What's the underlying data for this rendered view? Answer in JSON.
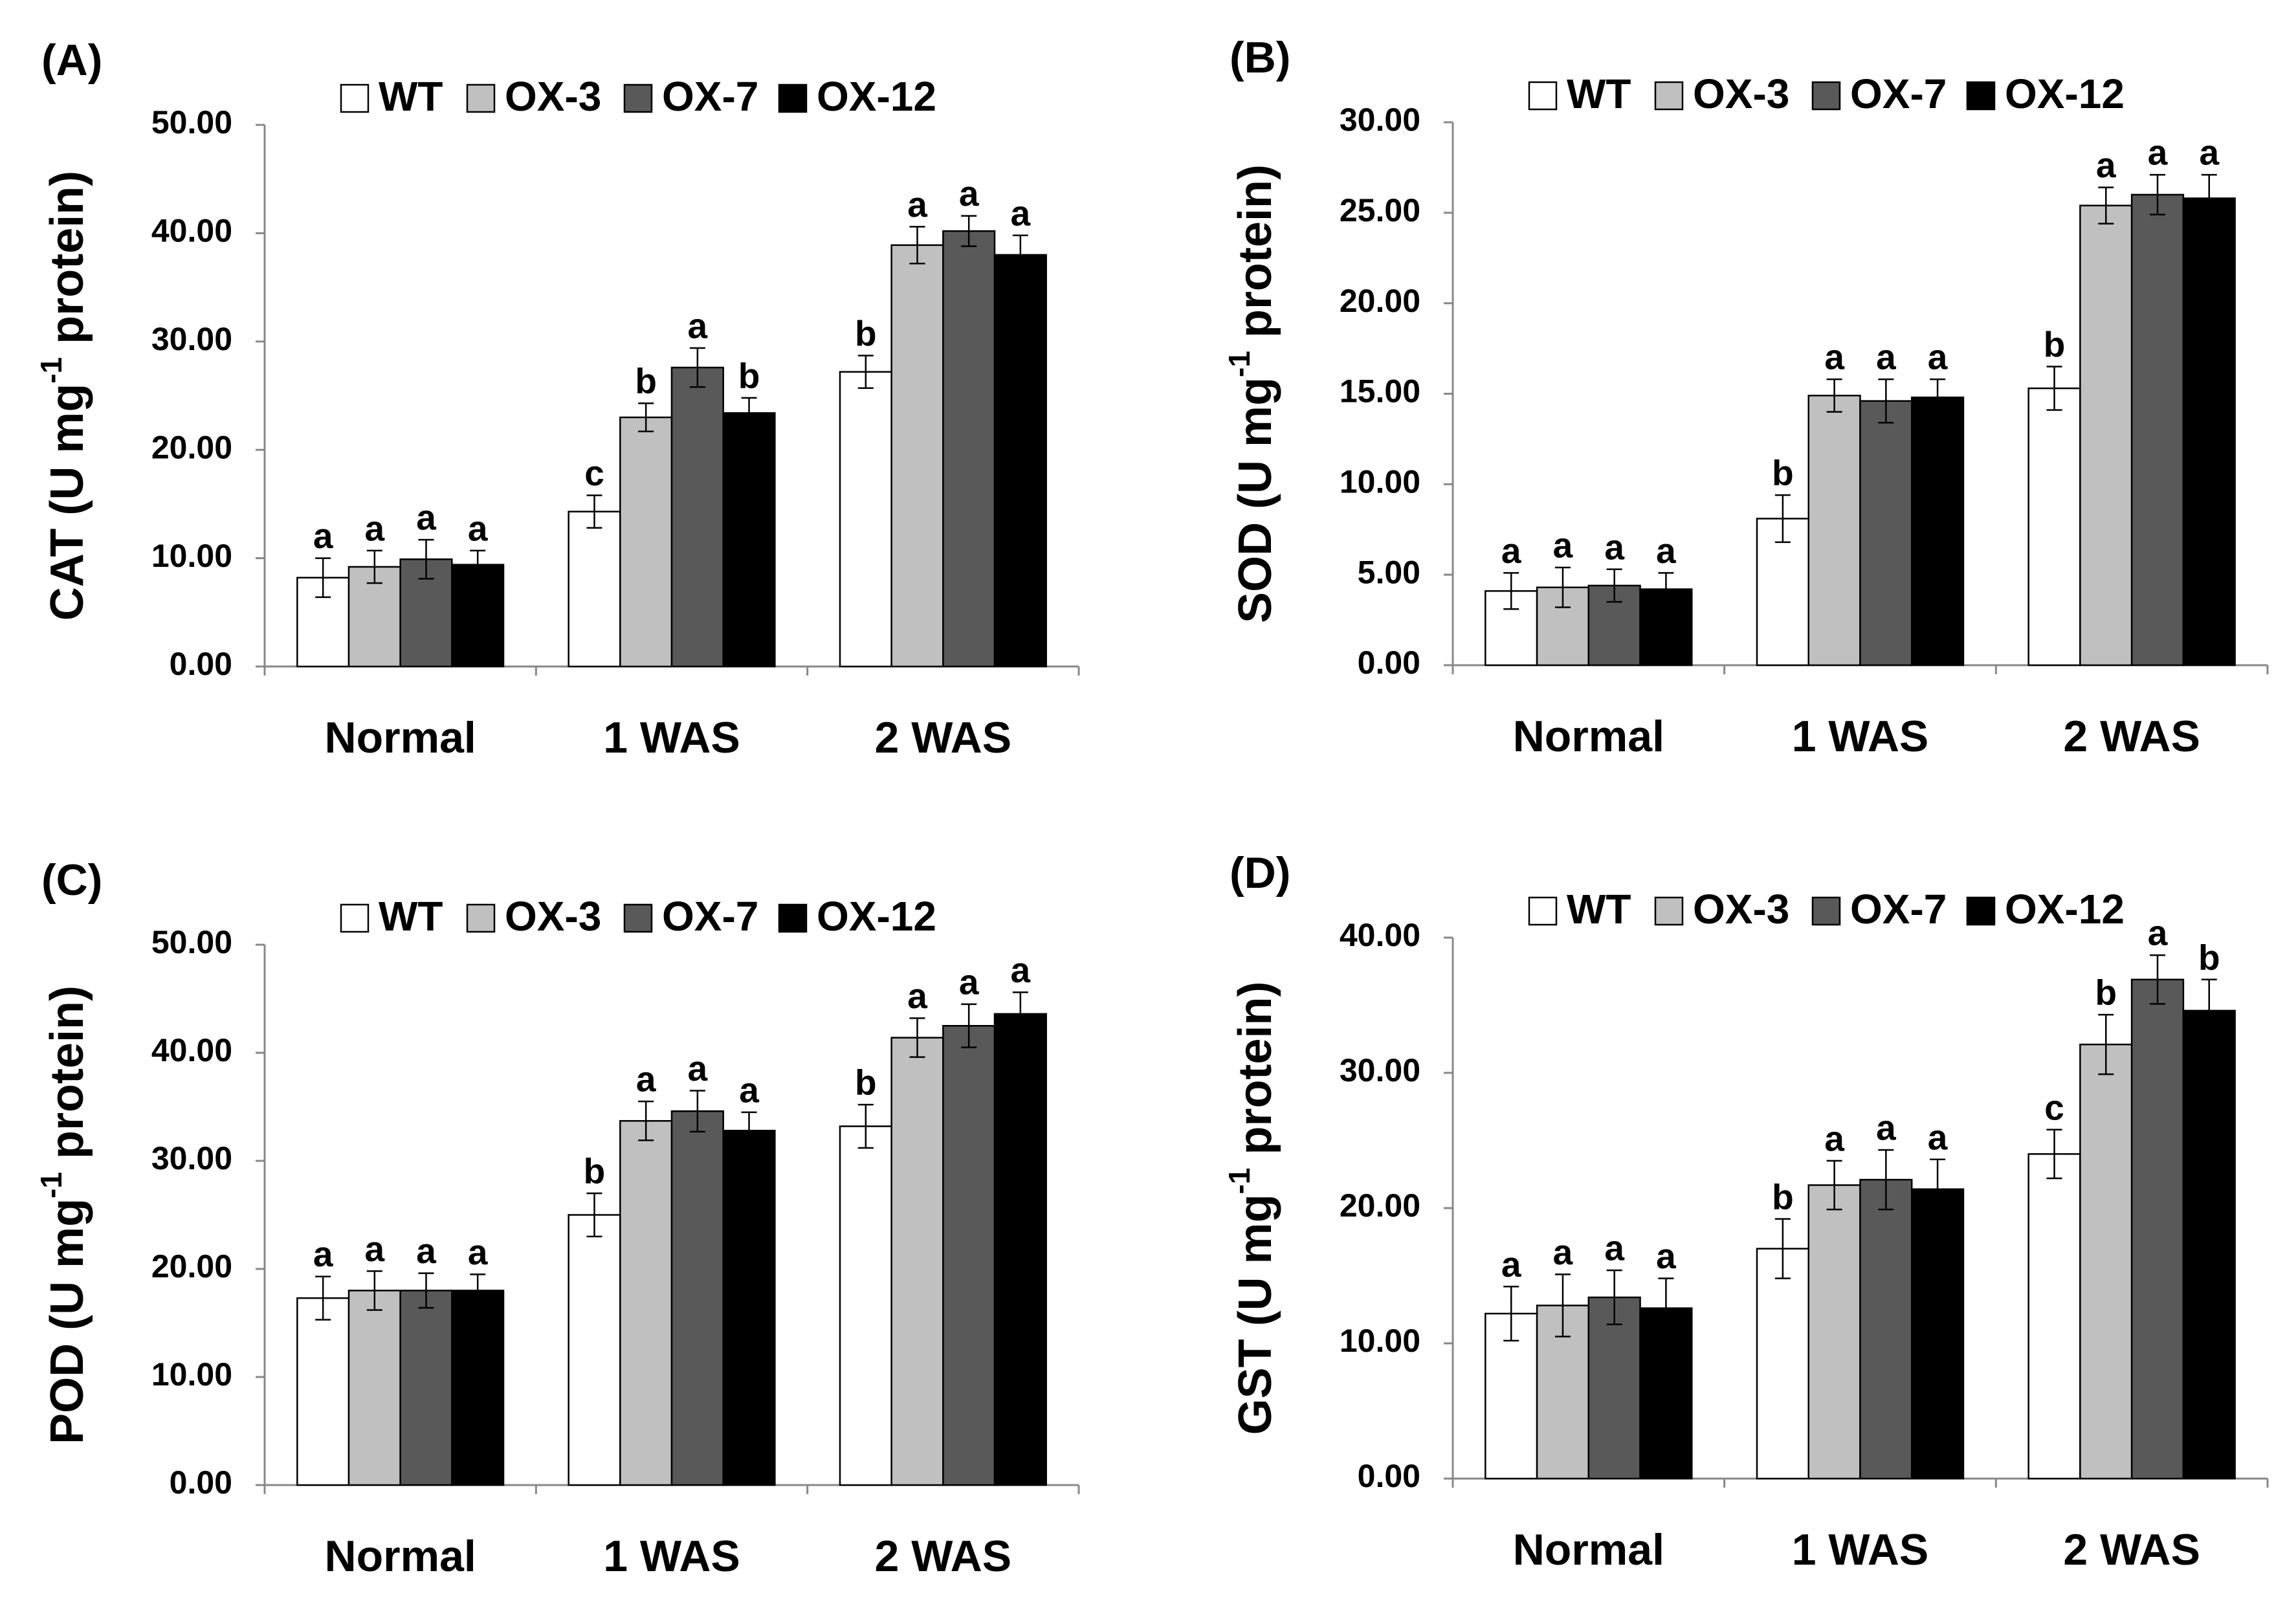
{
  "chart_data": [
    {
      "type": "bar",
      "panel": "(A)",
      "ylabel": [
        "CAT (U mg",
        "-1",
        " protein)"
      ],
      "categories": [
        "Normal",
        "1 WAS",
        "2 WAS"
      ],
      "ylim": [
        0,
        50
      ],
      "yticks": [
        {
          "value": 0,
          "label": "0.00"
        },
        {
          "value": 10,
          "label": "10.00"
        },
        {
          "value": 20,
          "label": "20.00"
        },
        {
          "value": 30,
          "label": "30.00"
        },
        {
          "value": 40,
          "label": "40.00"
        },
        {
          "value": 50,
          "label": "50.00"
        }
      ],
      "series": [
        {
          "name": "WT",
          "color": "#ffffff",
          "values": [
            8.2,
            14.3,
            27.2
          ],
          "errors": [
            1.8,
            1.5,
            1.5
          ],
          "letters": [
            "a",
            "c",
            "b"
          ]
        },
        {
          "name": "OX-3",
          "color": "#c0c0c0",
          "values": [
            9.2,
            23.0,
            38.9
          ],
          "errors": [
            1.5,
            1.3,
            1.7
          ],
          "letters": [
            "a",
            "b",
            "a"
          ]
        },
        {
          "name": "OX-7",
          "color": "#595959",
          "values": [
            9.9,
            27.6,
            40.2
          ],
          "errors": [
            1.8,
            1.8,
            1.4
          ],
          "letters": [
            "a",
            "a",
            "a"
          ]
        },
        {
          "name": "OX-12",
          "color": "#000000",
          "values": [
            9.4,
            23.4,
            38.0
          ],
          "errors": [
            1.3,
            1.4,
            1.8
          ],
          "letters": [
            "a",
            "b",
            "a"
          ]
        }
      ]
    },
    {
      "type": "bar",
      "panel": "(B)",
      "ylabel": [
        "SOD (U mg",
        "-1",
        " protein)"
      ],
      "categories": [
        "Normal",
        "1 WAS",
        "2 WAS"
      ],
      "ylim": [
        0,
        30
      ],
      "yticks": [
        {
          "value": 0,
          "label": "0.00"
        },
        {
          "value": 5,
          "label": "5.00"
        },
        {
          "value": 10,
          "label": "10.00"
        },
        {
          "value": 15,
          "label": "15.00"
        },
        {
          "value": 20,
          "label": "20.00"
        },
        {
          "value": 25,
          "label": "25.00"
        },
        {
          "value": 30,
          "label": "30.00"
        }
      ],
      "series": [
        {
          "name": "WT",
          "color": "#ffffff",
          "values": [
            4.1,
            8.1,
            15.3
          ],
          "errors": [
            1.0,
            1.3,
            1.2
          ],
          "letters": [
            "a",
            "b",
            "b"
          ]
        },
        {
          "name": "OX-3",
          "color": "#c0c0c0",
          "values": [
            4.3,
            14.9,
            25.4
          ],
          "errors": [
            1.1,
            0.9,
            1.0
          ],
          "letters": [
            "a",
            "a",
            "a"
          ]
        },
        {
          "name": "OX-7",
          "color": "#595959",
          "values": [
            4.4,
            14.6,
            26.0
          ],
          "errors": [
            0.9,
            1.2,
            1.1
          ],
          "letters": [
            "a",
            "a",
            "a"
          ]
        },
        {
          "name": "OX-12",
          "color": "#000000",
          "values": [
            4.2,
            14.8,
            25.8
          ],
          "errors": [
            0.9,
            1.0,
            1.3
          ],
          "letters": [
            "a",
            "a",
            "a"
          ]
        }
      ]
    },
    {
      "type": "bar",
      "panel": "(C)",
      "ylabel": [
        "POD (U mg",
        "-1",
        " protein)"
      ],
      "categories": [
        "Normal",
        "1 WAS",
        "2 WAS"
      ],
      "ylim": [
        0,
        50
      ],
      "yticks": [
        {
          "value": 0,
          "label": "0.00"
        },
        {
          "value": 10,
          "label": "10.00"
        },
        {
          "value": 20,
          "label": "20.00"
        },
        {
          "value": 30,
          "label": "30.00"
        },
        {
          "value": 40,
          "label": "40.00"
        },
        {
          "value": 50,
          "label": "50.00"
        }
      ],
      "series": [
        {
          "name": "WT",
          "color": "#ffffff",
          "values": [
            17.3,
            25.0,
            33.2
          ],
          "errors": [
            2.0,
            2.0,
            2.0
          ],
          "letters": [
            "a",
            "b",
            "b"
          ]
        },
        {
          "name": "OX-3",
          "color": "#c0c0c0",
          "values": [
            18.0,
            33.7,
            41.4
          ],
          "errors": [
            1.8,
            1.8,
            1.8
          ],
          "letters": [
            "a",
            "a",
            "a"
          ]
        },
        {
          "name": "OX-7",
          "color": "#595959",
          "values": [
            18.0,
            34.6,
            42.5
          ],
          "errors": [
            1.6,
            1.9,
            2.0
          ],
          "letters": [
            "a",
            "a",
            "a"
          ]
        },
        {
          "name": "OX-12",
          "color": "#000000",
          "values": [
            18.0,
            32.8,
            43.6
          ],
          "errors": [
            1.5,
            1.7,
            2.0
          ],
          "letters": [
            "a",
            "a",
            "a"
          ]
        }
      ]
    },
    {
      "type": "bar",
      "panel": "(D)",
      "ylabel": [
        "GST (U mg",
        "-1",
        " protein)"
      ],
      "categories": [
        "Normal",
        "1 WAS",
        "2 WAS"
      ],
      "ylim": [
        0,
        40
      ],
      "yticks": [
        {
          "value": 0,
          "label": "0.00"
        },
        {
          "value": 10,
          "label": "10.00"
        },
        {
          "value": 20,
          "label": "20.00"
        },
        {
          "value": 30,
          "label": "30.00"
        },
        {
          "value": 40,
          "label": "40.00"
        }
      ],
      "series": [
        {
          "name": "WT",
          "color": "#ffffff",
          "values": [
            12.2,
            17.0,
            24.0
          ],
          "errors": [
            2.0,
            2.2,
            1.8
          ],
          "letters": [
            "a",
            "b",
            "c"
          ]
        },
        {
          "name": "OX-3",
          "color": "#c0c0c0",
          "values": [
            12.8,
            21.7,
            32.1
          ],
          "errors": [
            2.3,
            1.8,
            2.2
          ],
          "letters": [
            "a",
            "a",
            "b"
          ]
        },
        {
          "name": "OX-7",
          "color": "#595959",
          "values": [
            13.4,
            22.1,
            36.9
          ],
          "errors": [
            2.0,
            2.2,
            1.8
          ],
          "letters": [
            "a",
            "a",
            "a"
          ]
        },
        {
          "name": "OX-12",
          "color": "#000000",
          "values": [
            12.6,
            21.4,
            34.6
          ],
          "errors": [
            2.2,
            2.2,
            2.3
          ],
          "letters": [
            "a",
            "a",
            "b"
          ]
        }
      ]
    }
  ]
}
